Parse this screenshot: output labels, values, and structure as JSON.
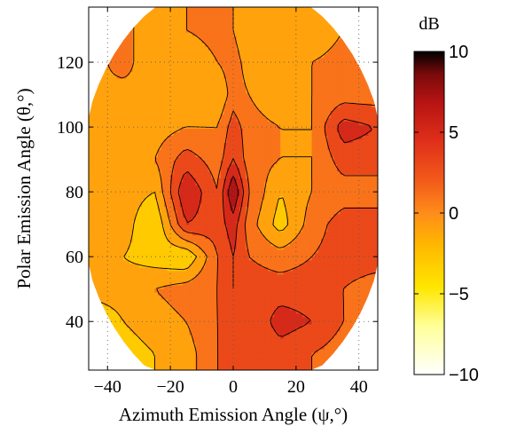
{
  "chart_data": {
    "type": "heatmap",
    "subtype": "filled-contour",
    "xlabel": "Azimuth Emission Angle (ψ,°)",
    "ylabel": "Polar Emission Angle (θ,°)",
    "xlim": [
      -46,
      46
    ],
    "ylim": [
      25,
      137
    ],
    "xticks": [
      -40,
      -20,
      0,
      20,
      40
    ],
    "yticks": [
      40,
      60,
      80,
      100,
      120
    ],
    "grid": "dotted",
    "colorbar": {
      "label": "dB",
      "range": [
        -10,
        10
      ],
      "ticks": [
        10,
        5,
        0,
        -5,
        -10
      ],
      "colormap": "hot-reversed",
      "colors": [
        "#ffffff",
        "#ffff99",
        "#ffe600",
        "#ffb800",
        "#ff8c1a",
        "#f25a1a",
        "#e0301a",
        "#b81414",
        "#7a0a0a",
        "#000000"
      ]
    },
    "contour_levels": [
      -6,
      -4,
      -2,
      0,
      2,
      4,
      6,
      8
    ],
    "x": [
      -45,
      -35,
      -25,
      -15,
      -5,
      0,
      5,
      15,
      25,
      35,
      45
    ],
    "y": [
      30,
      40,
      50,
      60,
      70,
      80,
      90,
      100,
      110,
      120,
      130
    ],
    "z": [
      [
        -2,
        -3,
        -2,
        -1,
        2,
        3,
        2,
        3,
        2,
        1,
        0
      ],
      [
        -4,
        -2,
        -1,
        0,
        2,
        3,
        2,
        5,
        4,
        2,
        1
      ],
      [
        -1,
        -1,
        0,
        1,
        2,
        4,
        3,
        3,
        3,
        2,
        1
      ],
      [
        0,
        -2,
        -3,
        -4,
        2,
        4,
        2,
        1,
        2,
        3,
        3
      ],
      [
        -1,
        -1,
        -4,
        4,
        3,
        5,
        1,
        -3,
        1,
        3,
        3
      ],
      [
        0,
        -1,
        -2,
        6,
        2,
        8,
        2,
        -2,
        0,
        1,
        1
      ],
      [
        0,
        0,
        0,
        3,
        1,
        4,
        1,
        0,
        0,
        3,
        3
      ],
      [
        -1,
        0,
        -1,
        0,
        0,
        3,
        1,
        0,
        0,
        5,
        4
      ],
      [
        0,
        -1,
        0,
        -2,
        -2,
        1,
        0,
        -2,
        0,
        1,
        1
      ],
      [
        -1,
        1,
        -2,
        -2,
        0,
        1,
        -1,
        -2,
        0,
        1,
        1
      ],
      [
        -1,
        1,
        -2,
        0,
        1,
        0,
        -2,
        -1,
        -2,
        0,
        1
      ]
    ]
  }
}
